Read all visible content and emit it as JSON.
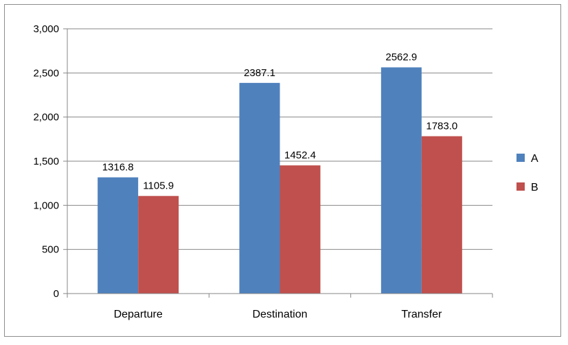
{
  "chart_data": {
    "type": "bar",
    "categories": [
      "Departure",
      "Destination",
      "Transfer"
    ],
    "series": [
      {
        "name": "A",
        "values": [
          1316.8,
          2387.1,
          2562.9
        ],
        "labels": [
          "1316.8",
          "2387.1",
          "2562.9"
        ],
        "color": "#4f81bd"
      },
      {
        "name": "B",
        "values": [
          1105.9,
          1452.4,
          1783.0
        ],
        "labels": [
          "1105.9",
          "1452.4",
          "1783.0"
        ],
        "color": "#c0504d"
      }
    ],
    "ylim": [
      0,
      3000
    ],
    "yticks": [
      0,
      500,
      1000,
      1500,
      2000,
      2500,
      3000
    ],
    "ytick_labels": [
      "0",
      "500",
      "1,000",
      "1,500",
      "2,000",
      "2,500",
      "3,000"
    ],
    "grid": true,
    "legend": "right",
    "title": "",
    "xlabel": "",
    "ylabel": ""
  }
}
